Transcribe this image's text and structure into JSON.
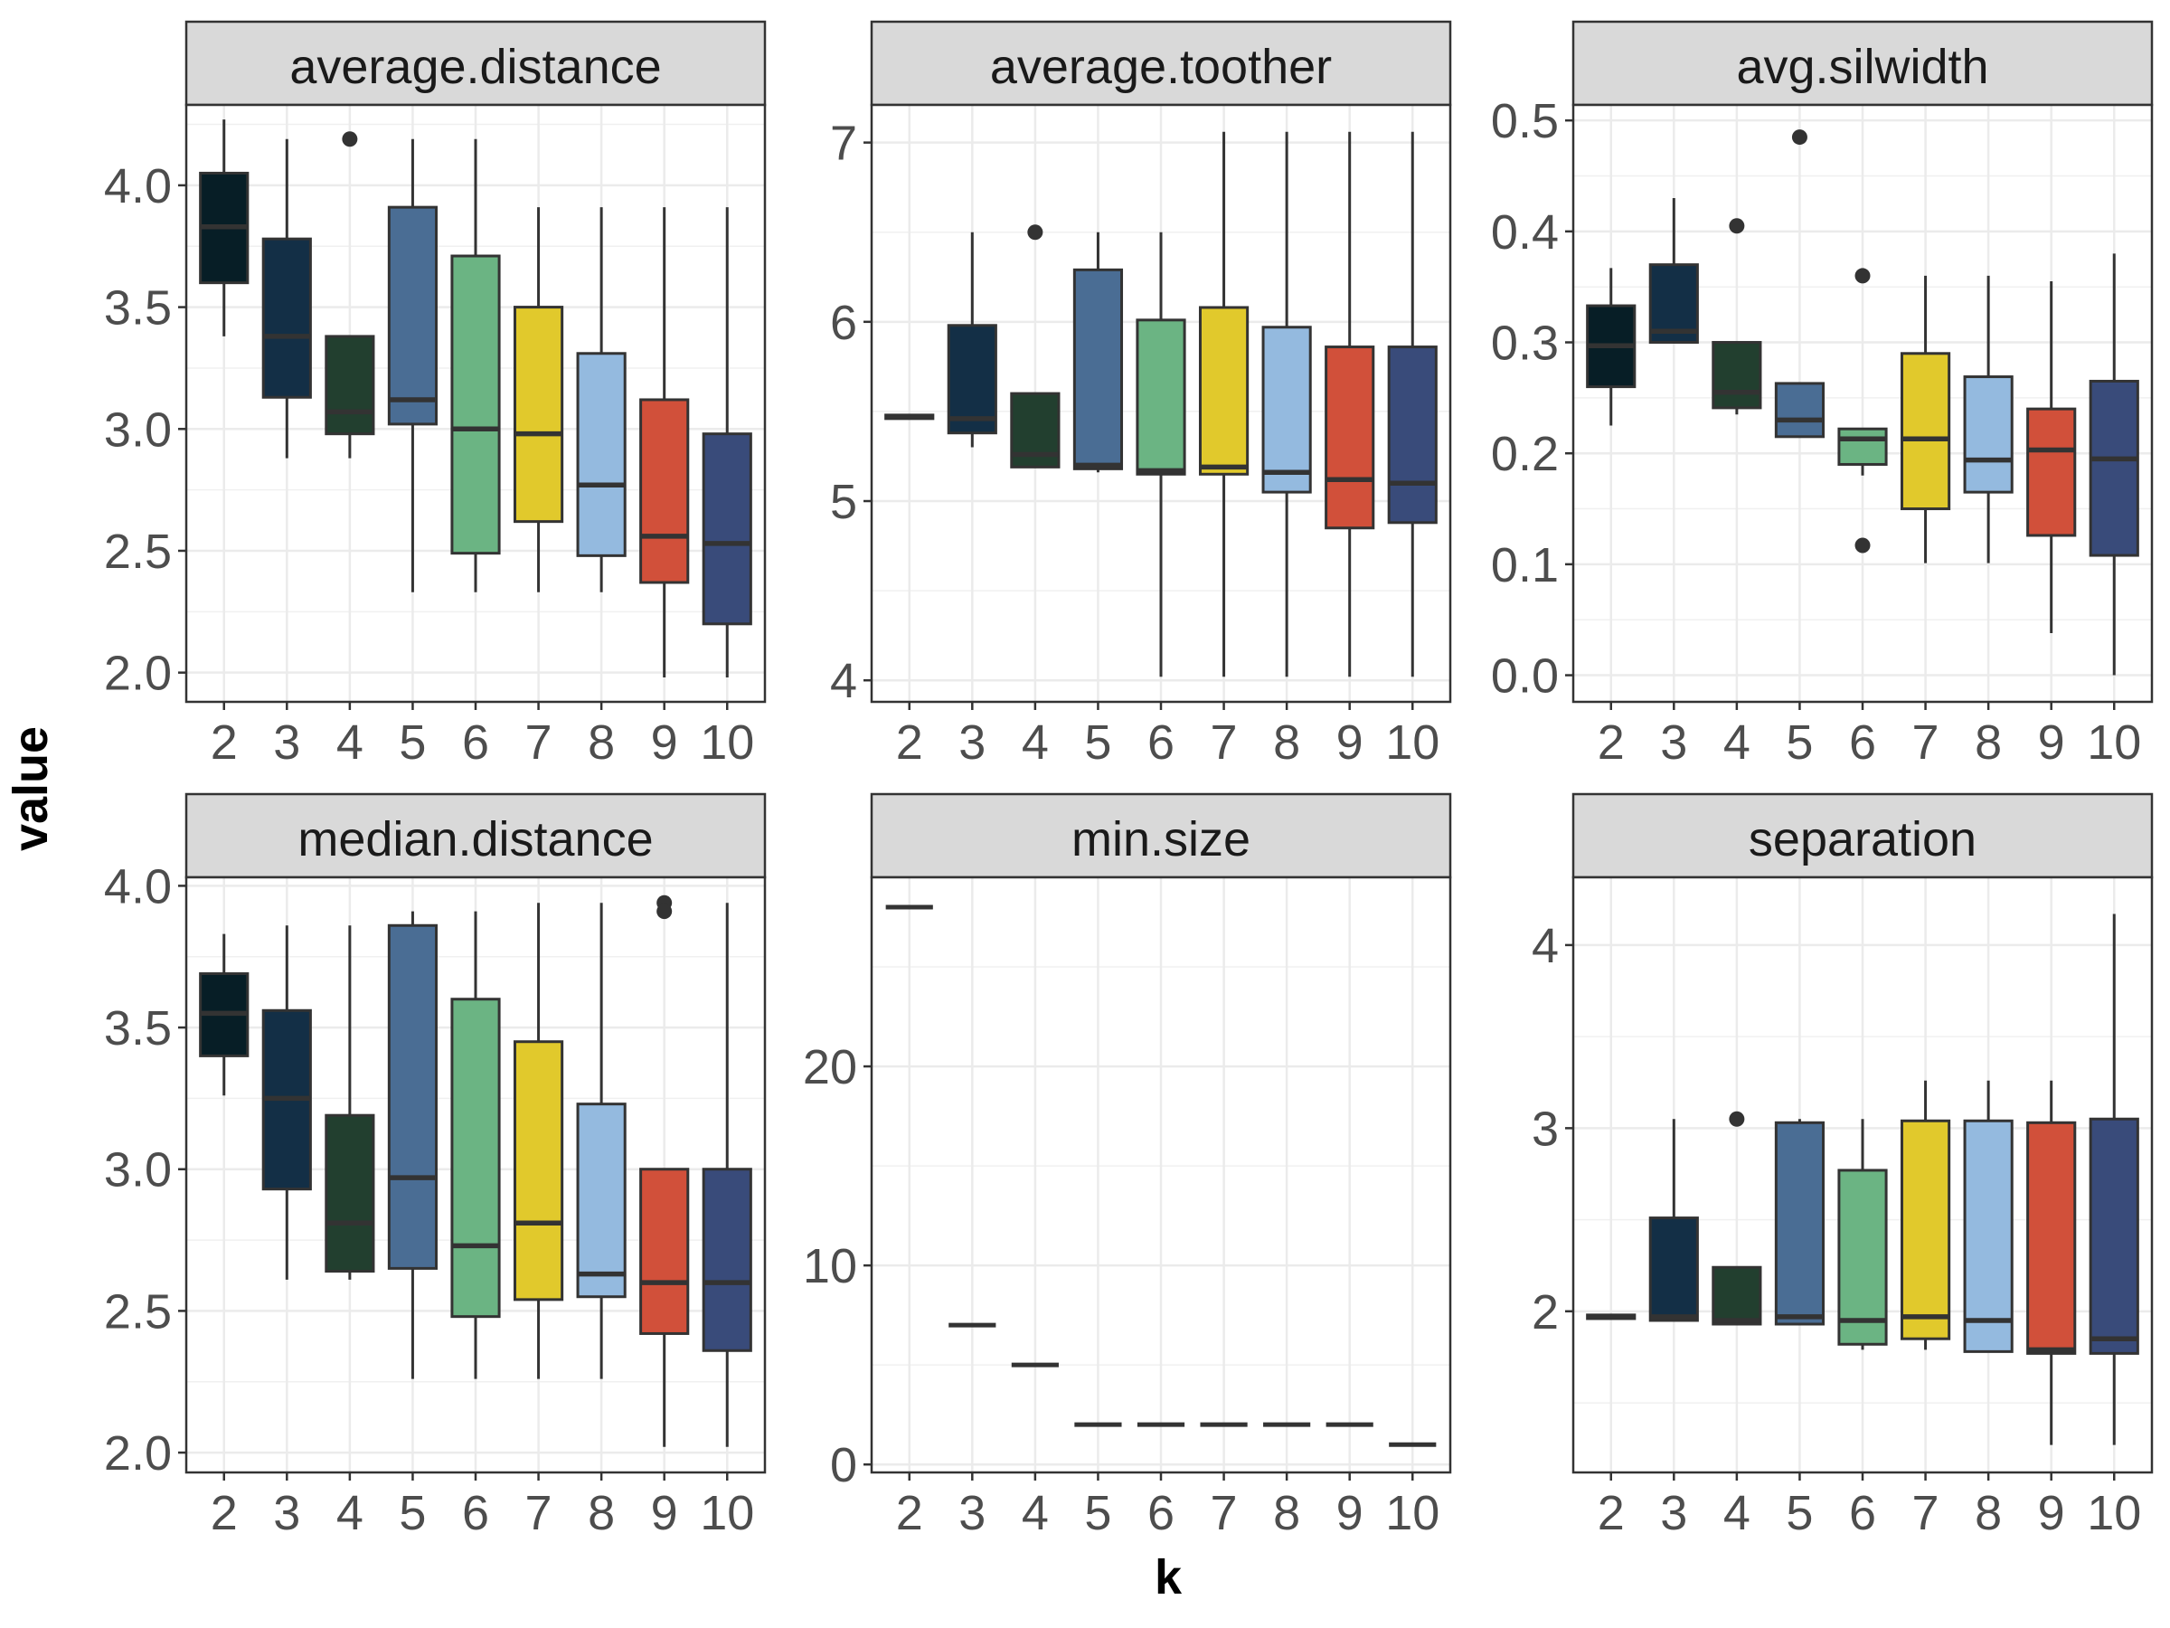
{
  "chart_data": {
    "type": "boxplot",
    "xlabel": "k",
    "ylabel": "value",
    "grid": true,
    "legend": "none",
    "categories": [
      "2",
      "3",
      "4",
      "5",
      "6",
      "7",
      "8",
      "9",
      "10"
    ],
    "colors": [
      "#071e26",
      "#132f46",
      "#223f2f",
      "#4a6d94",
      "#6bb483",
      "#e1c92c",
      "#94badf",
      "#d1503a",
      "#394b7a"
    ],
    "panels": [
      {
        "name": "average.distance",
        "ylim": [
          1.88,
          4.33
        ],
        "yticks": [
          2.0,
          2.5,
          3.0,
          3.5,
          4.0
        ],
        "ytick_labels": [
          "2.0",
          "2.5",
          "3.0",
          "3.5",
          "4.0"
        ],
        "boxes": [
          {
            "q1": 3.6,
            "median": 3.83,
            "q3": 4.05,
            "lo": 3.38,
            "hi": 4.27,
            "outliers": []
          },
          {
            "q1": 3.13,
            "median": 3.38,
            "q3": 3.78,
            "lo": 2.88,
            "hi": 4.19,
            "outliers": []
          },
          {
            "q1": 2.98,
            "median": 3.07,
            "q3": 3.38,
            "lo": 2.88,
            "hi": 3.38,
            "outliers": [
              4.19
            ]
          },
          {
            "q1": 3.02,
            "median": 3.12,
            "q3": 3.91,
            "lo": 2.33,
            "hi": 4.19,
            "outliers": []
          },
          {
            "q1": 2.49,
            "median": 3.0,
            "q3": 3.71,
            "lo": 2.33,
            "hi": 4.19,
            "outliers": []
          },
          {
            "q1": 2.62,
            "median": 2.98,
            "q3": 3.5,
            "lo": 2.33,
            "hi": 3.91,
            "outliers": []
          },
          {
            "q1": 2.48,
            "median": 2.77,
            "q3": 3.31,
            "lo": 2.33,
            "hi": 3.91,
            "outliers": []
          },
          {
            "q1": 2.37,
            "median": 2.56,
            "q3": 3.12,
            "lo": 1.98,
            "hi": 3.91,
            "outliers": []
          },
          {
            "q1": 2.2,
            "median": 2.53,
            "q3": 2.98,
            "lo": 1.98,
            "hi": 3.91,
            "outliers": []
          }
        ]
      },
      {
        "name": "average.toother",
        "ylim": [
          3.88,
          7.21
        ],
        "yticks": [
          4,
          5,
          6,
          7
        ],
        "ytick_labels": [
          "4",
          "5",
          "6",
          "7"
        ],
        "boxes": [
          {
            "q1": 5.46,
            "median": 5.47,
            "q3": 5.48,
            "lo": 5.46,
            "hi": 5.48,
            "outliers": []
          },
          {
            "q1": 5.38,
            "median": 5.46,
            "q3": 5.98,
            "lo": 5.3,
            "hi": 6.5,
            "outliers": []
          },
          {
            "q1": 5.19,
            "median": 5.26,
            "q3": 5.6,
            "lo": 5.19,
            "hi": 5.6,
            "outliers": [
              6.5
            ]
          },
          {
            "q1": 5.18,
            "median": 5.2,
            "q3": 6.29,
            "lo": 5.16,
            "hi": 6.5,
            "outliers": []
          },
          {
            "q1": 5.15,
            "median": 5.17,
            "q3": 6.01,
            "lo": 4.02,
            "hi": 6.5,
            "outliers": []
          },
          {
            "q1": 5.15,
            "median": 5.19,
            "q3": 6.08,
            "lo": 4.02,
            "hi": 7.06,
            "outliers": []
          },
          {
            "q1": 5.05,
            "median": 5.16,
            "q3": 5.97,
            "lo": 4.02,
            "hi": 7.06,
            "outliers": []
          },
          {
            "q1": 4.85,
            "median": 5.12,
            "q3": 5.86,
            "lo": 4.02,
            "hi": 7.06,
            "outliers": []
          },
          {
            "q1": 4.88,
            "median": 5.1,
            "q3": 5.86,
            "lo": 4.02,
            "hi": 7.06,
            "outliers": []
          }
        ]
      },
      {
        "name": "avg.silwidth",
        "ylim": [
          -0.024,
          0.514
        ],
        "yticks": [
          0.0,
          0.1,
          0.2,
          0.3,
          0.4,
          0.5
        ],
        "ytick_labels": [
          "0.0",
          "0.1",
          "0.2",
          "0.3",
          "0.4",
          "0.5"
        ],
        "boxes": [
          {
            "q1": 0.26,
            "median": 0.297,
            "q3": 0.333,
            "lo": 0.225,
            "hi": 0.367,
            "outliers": []
          },
          {
            "q1": 0.3,
            "median": 0.31,
            "q3": 0.37,
            "lo": 0.3,
            "hi": 0.43,
            "outliers": []
          },
          {
            "q1": 0.241,
            "median": 0.255,
            "q3": 0.3,
            "lo": 0.235,
            "hi": 0.3,
            "outliers": [
              0.405
            ]
          },
          {
            "q1": 0.215,
            "median": 0.23,
            "q3": 0.263,
            "lo": 0.215,
            "hi": 0.263,
            "outliers": [
              0.485
            ]
          },
          {
            "q1": 0.19,
            "median": 0.213,
            "q3": 0.222,
            "lo": 0.18,
            "hi": 0.222,
            "outliers": [
              0.36,
              0.117
            ]
          },
          {
            "q1": 0.15,
            "median": 0.213,
            "q3": 0.29,
            "lo": 0.101,
            "hi": 0.36,
            "outliers": []
          },
          {
            "q1": 0.165,
            "median": 0.194,
            "q3": 0.269,
            "lo": 0.101,
            "hi": 0.36,
            "outliers": []
          },
          {
            "q1": 0.126,
            "median": 0.203,
            "q3": 0.24,
            "lo": 0.038,
            "hi": 0.355,
            "outliers": []
          },
          {
            "q1": 0.108,
            "median": 0.195,
            "q3": 0.265,
            "lo": 0.0,
            "hi": 0.38,
            "outliers": []
          }
        ]
      },
      {
        "name": "median.distance",
        "ylim": [
          1.93,
          4.03
        ],
        "yticks": [
          2.0,
          2.5,
          3.0,
          3.5,
          4.0
        ],
        "ytick_labels": [
          "2.0",
          "2.5",
          "3.0",
          "3.5",
          "4.0"
        ],
        "boxes": [
          {
            "q1": 3.4,
            "median": 3.55,
            "q3": 3.69,
            "lo": 3.26,
            "hi": 3.83,
            "outliers": []
          },
          {
            "q1": 2.93,
            "median": 3.25,
            "q3": 3.56,
            "lo": 2.61,
            "hi": 3.86,
            "outliers": []
          },
          {
            "q1": 2.64,
            "median": 2.81,
            "q3": 3.19,
            "lo": 2.61,
            "hi": 3.86,
            "outliers": []
          },
          {
            "q1": 2.65,
            "median": 2.97,
            "q3": 3.86,
            "lo": 2.26,
            "hi": 3.91,
            "outliers": []
          },
          {
            "q1": 2.48,
            "median": 2.73,
            "q3": 3.6,
            "lo": 2.26,
            "hi": 3.91,
            "outliers": []
          },
          {
            "q1": 2.54,
            "median": 2.81,
            "q3": 3.45,
            "lo": 2.26,
            "hi": 3.94,
            "outliers": []
          },
          {
            "q1": 2.55,
            "median": 2.63,
            "q3": 3.23,
            "lo": 2.26,
            "hi": 3.94,
            "outliers": []
          },
          {
            "q1": 2.42,
            "median": 2.6,
            "q3": 3.0,
            "lo": 2.02,
            "hi": 3.0,
            "outliers": [
              3.94,
              3.91
            ]
          },
          {
            "q1": 2.36,
            "median": 2.6,
            "q3": 3.0,
            "lo": 2.02,
            "hi": 3.94,
            "outliers": []
          }
        ]
      },
      {
        "name": "min.size",
        "ylim": [
          -0.4,
          29.5
        ],
        "yticks": [
          0,
          10,
          20
        ],
        "ytick_labels": [
          "0",
          "10",
          "20"
        ],
        "boxes": [
          {
            "q1": 28,
            "median": 28,
            "q3": 28,
            "lo": 28,
            "hi": 28,
            "outliers": []
          },
          {
            "q1": 7,
            "median": 7,
            "q3": 7,
            "lo": 7,
            "hi": 7,
            "outliers": []
          },
          {
            "q1": 5,
            "median": 5,
            "q3": 5,
            "lo": 5,
            "hi": 5,
            "outliers": []
          },
          {
            "q1": 2,
            "median": 2,
            "q3": 2,
            "lo": 2,
            "hi": 2,
            "outliers": []
          },
          {
            "q1": 2,
            "median": 2,
            "q3": 2,
            "lo": 2,
            "hi": 2,
            "outliers": []
          },
          {
            "q1": 2,
            "median": 2,
            "q3": 2,
            "lo": 2,
            "hi": 2,
            "outliers": []
          },
          {
            "q1": 2,
            "median": 2,
            "q3": 2,
            "lo": 2,
            "hi": 2,
            "outliers": []
          },
          {
            "q1": 2,
            "median": 2,
            "q3": 2,
            "lo": 2,
            "hi": 2,
            "outliers": []
          },
          {
            "q1": 1,
            "median": 1,
            "q3": 1,
            "lo": 1,
            "hi": 1,
            "outliers": []
          }
        ]
      },
      {
        "name": "separation",
        "ylim": [
          1.12,
          4.37
        ],
        "yticks": [
          2,
          3,
          4
        ],
        "ytick_labels": [
          "2",
          "3",
          "4"
        ],
        "boxes": [
          {
            "q1": 1.96,
            "median": 1.97,
            "q3": 1.98,
            "lo": 1.96,
            "hi": 1.98,
            "outliers": []
          },
          {
            "q1": 1.95,
            "median": 1.97,
            "q3": 2.51,
            "lo": 1.95,
            "hi": 3.05,
            "outliers": []
          },
          {
            "q1": 1.93,
            "median": 1.95,
            "q3": 2.24,
            "lo": 1.93,
            "hi": 2.24,
            "outliers": [
              3.05
            ]
          },
          {
            "q1": 1.93,
            "median": 1.97,
            "q3": 3.03,
            "lo": 1.93,
            "hi": 3.05,
            "outliers": []
          },
          {
            "q1": 1.82,
            "median": 1.95,
            "q3": 2.77,
            "lo": 1.79,
            "hi": 3.05,
            "outliers": []
          },
          {
            "q1": 1.85,
            "median": 1.97,
            "q3": 3.04,
            "lo": 1.79,
            "hi": 3.26,
            "outliers": []
          },
          {
            "q1": 1.78,
            "median": 1.95,
            "q3": 3.04,
            "lo": 1.78,
            "hi": 3.26,
            "outliers": []
          },
          {
            "q1": 1.77,
            "median": 1.79,
            "q3": 3.03,
            "lo": 1.27,
            "hi": 3.26,
            "outliers": []
          },
          {
            "q1": 1.77,
            "median": 1.85,
            "q3": 3.05,
            "lo": 1.27,
            "hi": 4.17,
            "outliers": []
          }
        ]
      }
    ]
  }
}
